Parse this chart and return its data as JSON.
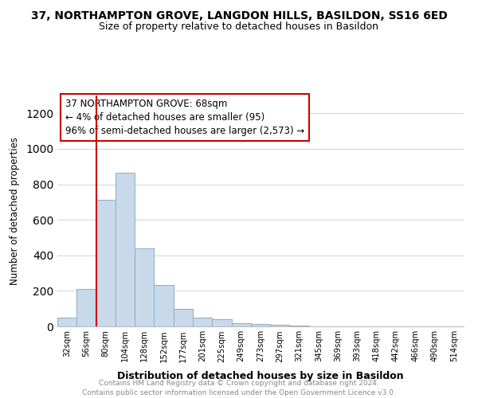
{
  "title": "37, NORTHAMPTON GROVE, LANGDON HILLS, BASILDON, SS16 6ED",
  "subtitle": "Size of property relative to detached houses in Basildon",
  "xlabel": "Distribution of detached houses by size in Basildon",
  "ylabel": "Number of detached properties",
  "annotation_line1": "37 NORTHAMPTON GROVE: 68sqm",
  "annotation_line2": "← 4% of detached houses are smaller (95)",
  "annotation_line3": "96% of semi-detached houses are larger (2,573) →",
  "bar_color": "#c8d9ea",
  "bar_edge_color": "#8aaec8",
  "vline_color": "#cc0000",
  "annotation_box_edgecolor": "#cc0000",
  "categories": [
    "32sqm",
    "56sqm",
    "80sqm",
    "104sqm",
    "128sqm",
    "152sqm",
    "177sqm",
    "201sqm",
    "225sqm",
    "249sqm",
    "273sqm",
    "297sqm",
    "321sqm",
    "345sqm",
    "369sqm",
    "393sqm",
    "418sqm",
    "442sqm",
    "466sqm",
    "490sqm",
    "514sqm"
  ],
  "values": [
    50,
    210,
    715,
    865,
    440,
    235,
    100,
    50,
    40,
    20,
    15,
    10,
    5,
    0,
    0,
    0,
    0,
    0,
    0,
    0,
    0
  ],
  "ylim": [
    0,
    1300
  ],
  "yticks": [
    0,
    200,
    400,
    600,
    800,
    1000,
    1200
  ],
  "vline_bar_index": 2,
  "footer_line1": "Contains HM Land Registry data © Crown copyright and database right 2024.",
  "footer_line2": "Contains public sector information licensed under the Open Government Licence v3.0.",
  "background_color": "#ffffff",
  "grid_color": "#cccccc"
}
